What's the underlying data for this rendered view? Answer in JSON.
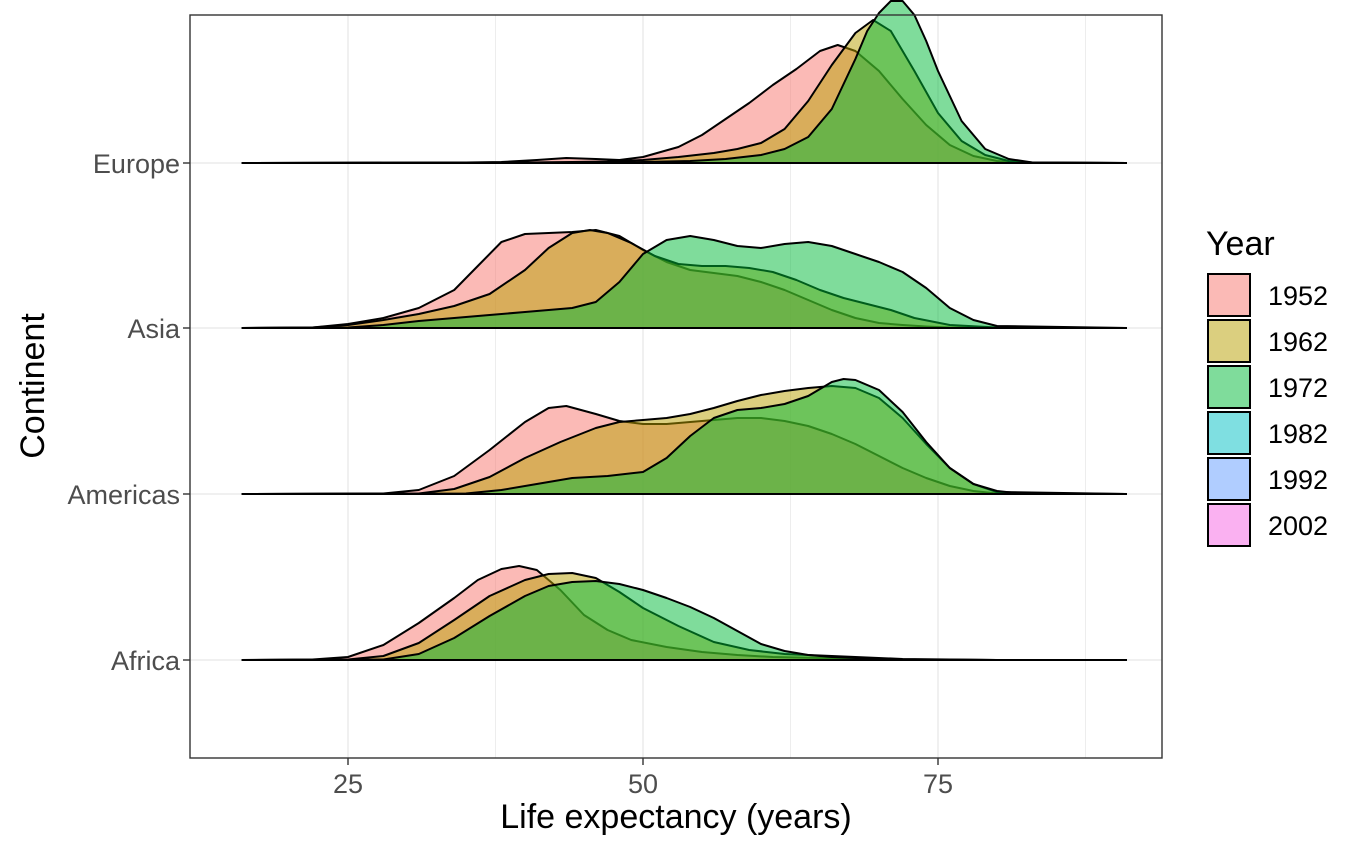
{
  "chart_data": {
    "type": "ridgeline",
    "title": "",
    "xlabel": "Life expectancy (years)",
    "ylabel": "Continent",
    "xlim": [
      14,
      95
    ],
    "x_ticks": [
      25,
      50,
      75
    ],
    "grid": true,
    "categories": [
      "Africa",
      "Americas",
      "Asia",
      "Europe"
    ],
    "legend": {
      "title": "Year",
      "position": "right",
      "entries": [
        {
          "label": "1952",
          "color": "#F8766D"
        },
        {
          "label": "1962",
          "color": "#B79F00"
        },
        {
          "label": "1972",
          "color": "#00BA38"
        },
        {
          "label": "1982",
          "color": "#00BFC4"
        },
        {
          "label": "1992",
          "color": "#619CFF"
        },
        {
          "label": "2002",
          "color": "#F564E3"
        }
      ]
    },
    "series": [
      {
        "continent": "Africa",
        "year": "1952",
        "x": [
          16,
          22,
          25,
          28,
          31,
          34,
          36,
          38,
          39.5,
          41,
          43,
          45,
          47,
          49,
          52,
          55,
          58,
          61,
          63,
          65,
          68,
          72,
          80,
          91
        ],
        "y": [
          0,
          0.005,
          0.03,
          0.15,
          0.37,
          0.62,
          0.8,
          0.91,
          0.94,
          0.9,
          0.7,
          0.45,
          0.3,
          0.2,
          0.13,
          0.08,
          0.05,
          0.03,
          0.025,
          0.02,
          0.01,
          0.005,
          0,
          0
        ]
      },
      {
        "continent": "Africa",
        "year": "1962",
        "x": [
          16,
          25,
          28,
          31,
          34,
          37,
          40,
          42,
          44,
          46,
          48,
          50,
          53,
          56,
          59,
          62,
          65,
          68,
          72,
          80,
          91
        ],
        "y": [
          0,
          0.005,
          0.04,
          0.17,
          0.4,
          0.64,
          0.8,
          0.86,
          0.87,
          0.82,
          0.68,
          0.52,
          0.34,
          0.18,
          0.1,
          0.06,
          0.045,
          0.03,
          0.01,
          0,
          0
        ]
      },
      {
        "continent": "Africa",
        "year": "1972",
        "x": [
          16,
          28,
          31,
          34,
          37,
          40,
          42,
          44,
          46,
          48,
          50,
          52,
          54,
          56,
          58,
          60,
          62,
          64,
          66,
          68,
          72,
          80,
          91
        ],
        "y": [
          0,
          0.005,
          0.06,
          0.22,
          0.44,
          0.64,
          0.74,
          0.78,
          0.79,
          0.76,
          0.7,
          0.62,
          0.53,
          0.42,
          0.29,
          0.16,
          0.09,
          0.05,
          0.03,
          0.02,
          0.005,
          0,
          0
        ]
      },
      {
        "continent": "Americas",
        "year": "1952",
        "x": [
          16,
          28,
          31,
          34,
          37,
          40,
          42,
          43.5,
          46,
          48,
          50,
          52,
          54,
          56,
          58,
          60,
          62,
          64,
          66,
          68,
          70,
          72,
          74,
          76,
          78,
          80,
          91
        ],
        "y": [
          0,
          0.005,
          0.04,
          0.18,
          0.44,
          0.72,
          0.86,
          0.88,
          0.8,
          0.73,
          0.7,
          0.7,
          0.72,
          0.74,
          0.76,
          0.76,
          0.73,
          0.68,
          0.6,
          0.5,
          0.38,
          0.26,
          0.16,
          0.08,
          0.03,
          0.005,
          0
        ]
      },
      {
        "continent": "Americas",
        "year": "1962",
        "x": [
          16,
          31,
          34,
          37,
          40,
          43,
          46,
          48,
          50,
          52,
          54,
          56,
          58,
          60,
          62,
          64,
          66,
          68,
          70,
          72,
          74,
          76,
          78,
          80,
          91
        ],
        "y": [
          0,
          0.005,
          0.05,
          0.17,
          0.36,
          0.52,
          0.66,
          0.72,
          0.74,
          0.76,
          0.8,
          0.86,
          0.93,
          0.99,
          1.03,
          1.06,
          1.08,
          1.06,
          0.96,
          0.76,
          0.5,
          0.26,
          0.1,
          0.02,
          0
        ]
      },
      {
        "continent": "Americas",
        "year": "1972",
        "x": [
          16,
          35,
          38,
          41,
          44,
          47,
          50,
          52,
          54,
          56,
          58,
          60,
          62,
          64,
          66,
          67,
          68,
          70,
          72,
          74,
          76,
          78,
          80,
          82,
          91
        ],
        "y": [
          0,
          0.005,
          0.04,
          0.1,
          0.16,
          0.18,
          0.22,
          0.36,
          0.58,
          0.76,
          0.84,
          0.86,
          0.9,
          0.98,
          1.12,
          1.15,
          1.14,
          1.04,
          0.82,
          0.52,
          0.26,
          0.1,
          0.03,
          0.005,
          0
        ]
      },
      {
        "continent": "Asia",
        "year": "1952",
        "x": [
          16,
          22,
          25,
          28,
          31,
          34,
          36,
          38,
          40,
          42,
          44,
          46,
          48,
          50,
          52,
          54,
          56,
          58,
          60,
          62,
          64,
          66,
          68,
          70,
          72,
          74,
          76,
          80,
          91
        ],
        "y": [
          0,
          0.005,
          0.04,
          0.1,
          0.2,
          0.38,
          0.62,
          0.86,
          0.94,
          0.95,
          0.96,
          0.98,
          0.92,
          0.78,
          0.66,
          0.58,
          0.55,
          0.52,
          0.46,
          0.38,
          0.28,
          0.18,
          0.1,
          0.05,
          0.03,
          0.015,
          0.005,
          0,
          0
        ]
      },
      {
        "continent": "Asia",
        "year": "1962",
        "x": [
          16,
          22,
          25,
          28,
          31,
          34,
          37,
          40,
          42,
          44,
          45.5,
          47,
          49,
          51,
          53,
          55,
          57,
          59,
          61,
          63,
          65,
          67,
          69,
          71,
          73,
          76,
          80,
          91
        ],
        "y": [
          0,
          0.005,
          0.03,
          0.08,
          0.14,
          0.22,
          0.34,
          0.58,
          0.8,
          0.95,
          0.98,
          0.95,
          0.85,
          0.72,
          0.64,
          0.62,
          0.62,
          0.6,
          0.56,
          0.48,
          0.38,
          0.3,
          0.24,
          0.18,
          0.1,
          0.03,
          0.005,
          0
        ]
      },
      {
        "continent": "Asia",
        "year": "1972",
        "x": [
          16,
          25,
          28,
          31,
          34,
          37,
          40,
          42,
          44,
          46,
          48,
          50,
          52,
          54,
          56,
          58,
          60,
          62,
          64,
          66,
          68,
          70,
          72,
          74,
          76,
          78,
          80,
          91
        ],
        "y": [
          0,
          0.005,
          0.03,
          0.07,
          0.1,
          0.13,
          0.16,
          0.18,
          0.2,
          0.26,
          0.46,
          0.74,
          0.88,
          0.92,
          0.88,
          0.82,
          0.8,
          0.84,
          0.86,
          0.82,
          0.74,
          0.66,
          0.56,
          0.4,
          0.2,
          0.08,
          0.02,
          0
        ]
      },
      {
        "continent": "Europe",
        "year": "1952",
        "x": [
          16,
          35,
          38,
          41,
          43.5,
          46,
          48,
          50,
          53,
          55,
          57,
          59,
          61,
          63,
          65,
          66.5,
          68,
          70,
          72,
          74,
          76,
          78,
          80,
          82,
          91
        ],
        "y": [
          0,
          0.005,
          0.01,
          0.03,
          0.05,
          0.04,
          0.03,
          0.06,
          0.16,
          0.28,
          0.44,
          0.6,
          0.78,
          0.94,
          1.12,
          1.18,
          1.12,
          0.92,
          0.64,
          0.38,
          0.18,
          0.07,
          0.02,
          0.005,
          0
        ]
      },
      {
        "continent": "Europe",
        "year": "1962",
        "x": [
          16,
          40,
          44,
          47,
          50,
          53,
          56,
          58,
          60,
          62,
          64,
          66,
          68,
          69.5,
          71,
          73,
          75,
          77,
          79,
          81,
          83,
          91
        ],
        "y": [
          0,
          0.005,
          0.01,
          0.015,
          0.03,
          0.06,
          0.1,
          0.14,
          0.2,
          0.34,
          0.62,
          0.98,
          1.3,
          1.43,
          1.32,
          0.92,
          0.5,
          0.22,
          0.08,
          0.02,
          0.005,
          0
        ]
      },
      {
        "continent": "Europe",
        "year": "1972",
        "x": [
          16,
          45,
          50,
          54,
          57,
          60,
          62,
          64,
          66,
          68,
          69,
          70,
          71,
          72,
          73,
          74,
          75,
          77,
          79,
          81,
          83,
          91
        ],
        "y": [
          0,
          0.005,
          0.01,
          0.02,
          0.04,
          0.08,
          0.14,
          0.26,
          0.54,
          1.04,
          1.32,
          1.5,
          1.62,
          1.62,
          1.48,
          1.22,
          0.92,
          0.42,
          0.14,
          0.04,
          0.005,
          0
        ]
      }
    ]
  }
}
